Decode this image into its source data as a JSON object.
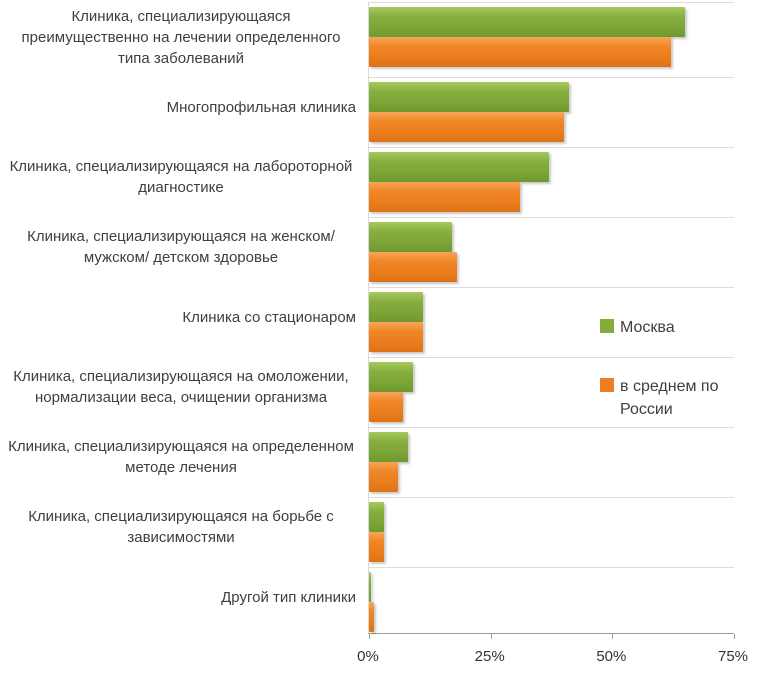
{
  "chart_data": {
    "type": "bar",
    "orientation": "horizontal",
    "title": "",
    "xlabel": "",
    "ylabel": "",
    "xlim": [
      0,
      75
    ],
    "x_ticks": [
      "0%",
      "25%",
      "50%",
      "75%"
    ],
    "grid": true,
    "legend_position": "inside-right",
    "categories": [
      "Клиника, специализирующаяся преимущественно на лечении определенного типа заболеваний",
      "Многопрофильная клиника",
      "Клиника, специализирующаяся на лабороторной диагностике",
      "Клиника, специализирующаяся на женском/ мужском/ детском здоровье",
      "Клиника со стационаром",
      "Клиника, специализирующаяся на омоложении, нормализации веса, очищении организма",
      "Клиника, специализирующаяся на определенном методе лечения",
      "Клиника, специализирующаяся  на борьбе с зависимостями",
      "Другой тип клиники"
    ],
    "series": [
      {
        "name": "Москва",
        "color": "#84AC3C",
        "values": [
          65,
          41,
          37,
          17,
          11,
          9,
          8,
          3,
          0.5
        ]
      },
      {
        "name": "в среднем по России",
        "color": "#EE7E22",
        "values": [
          62,
          40,
          31,
          18,
          11,
          7,
          6,
          3,
          1
        ]
      }
    ]
  }
}
